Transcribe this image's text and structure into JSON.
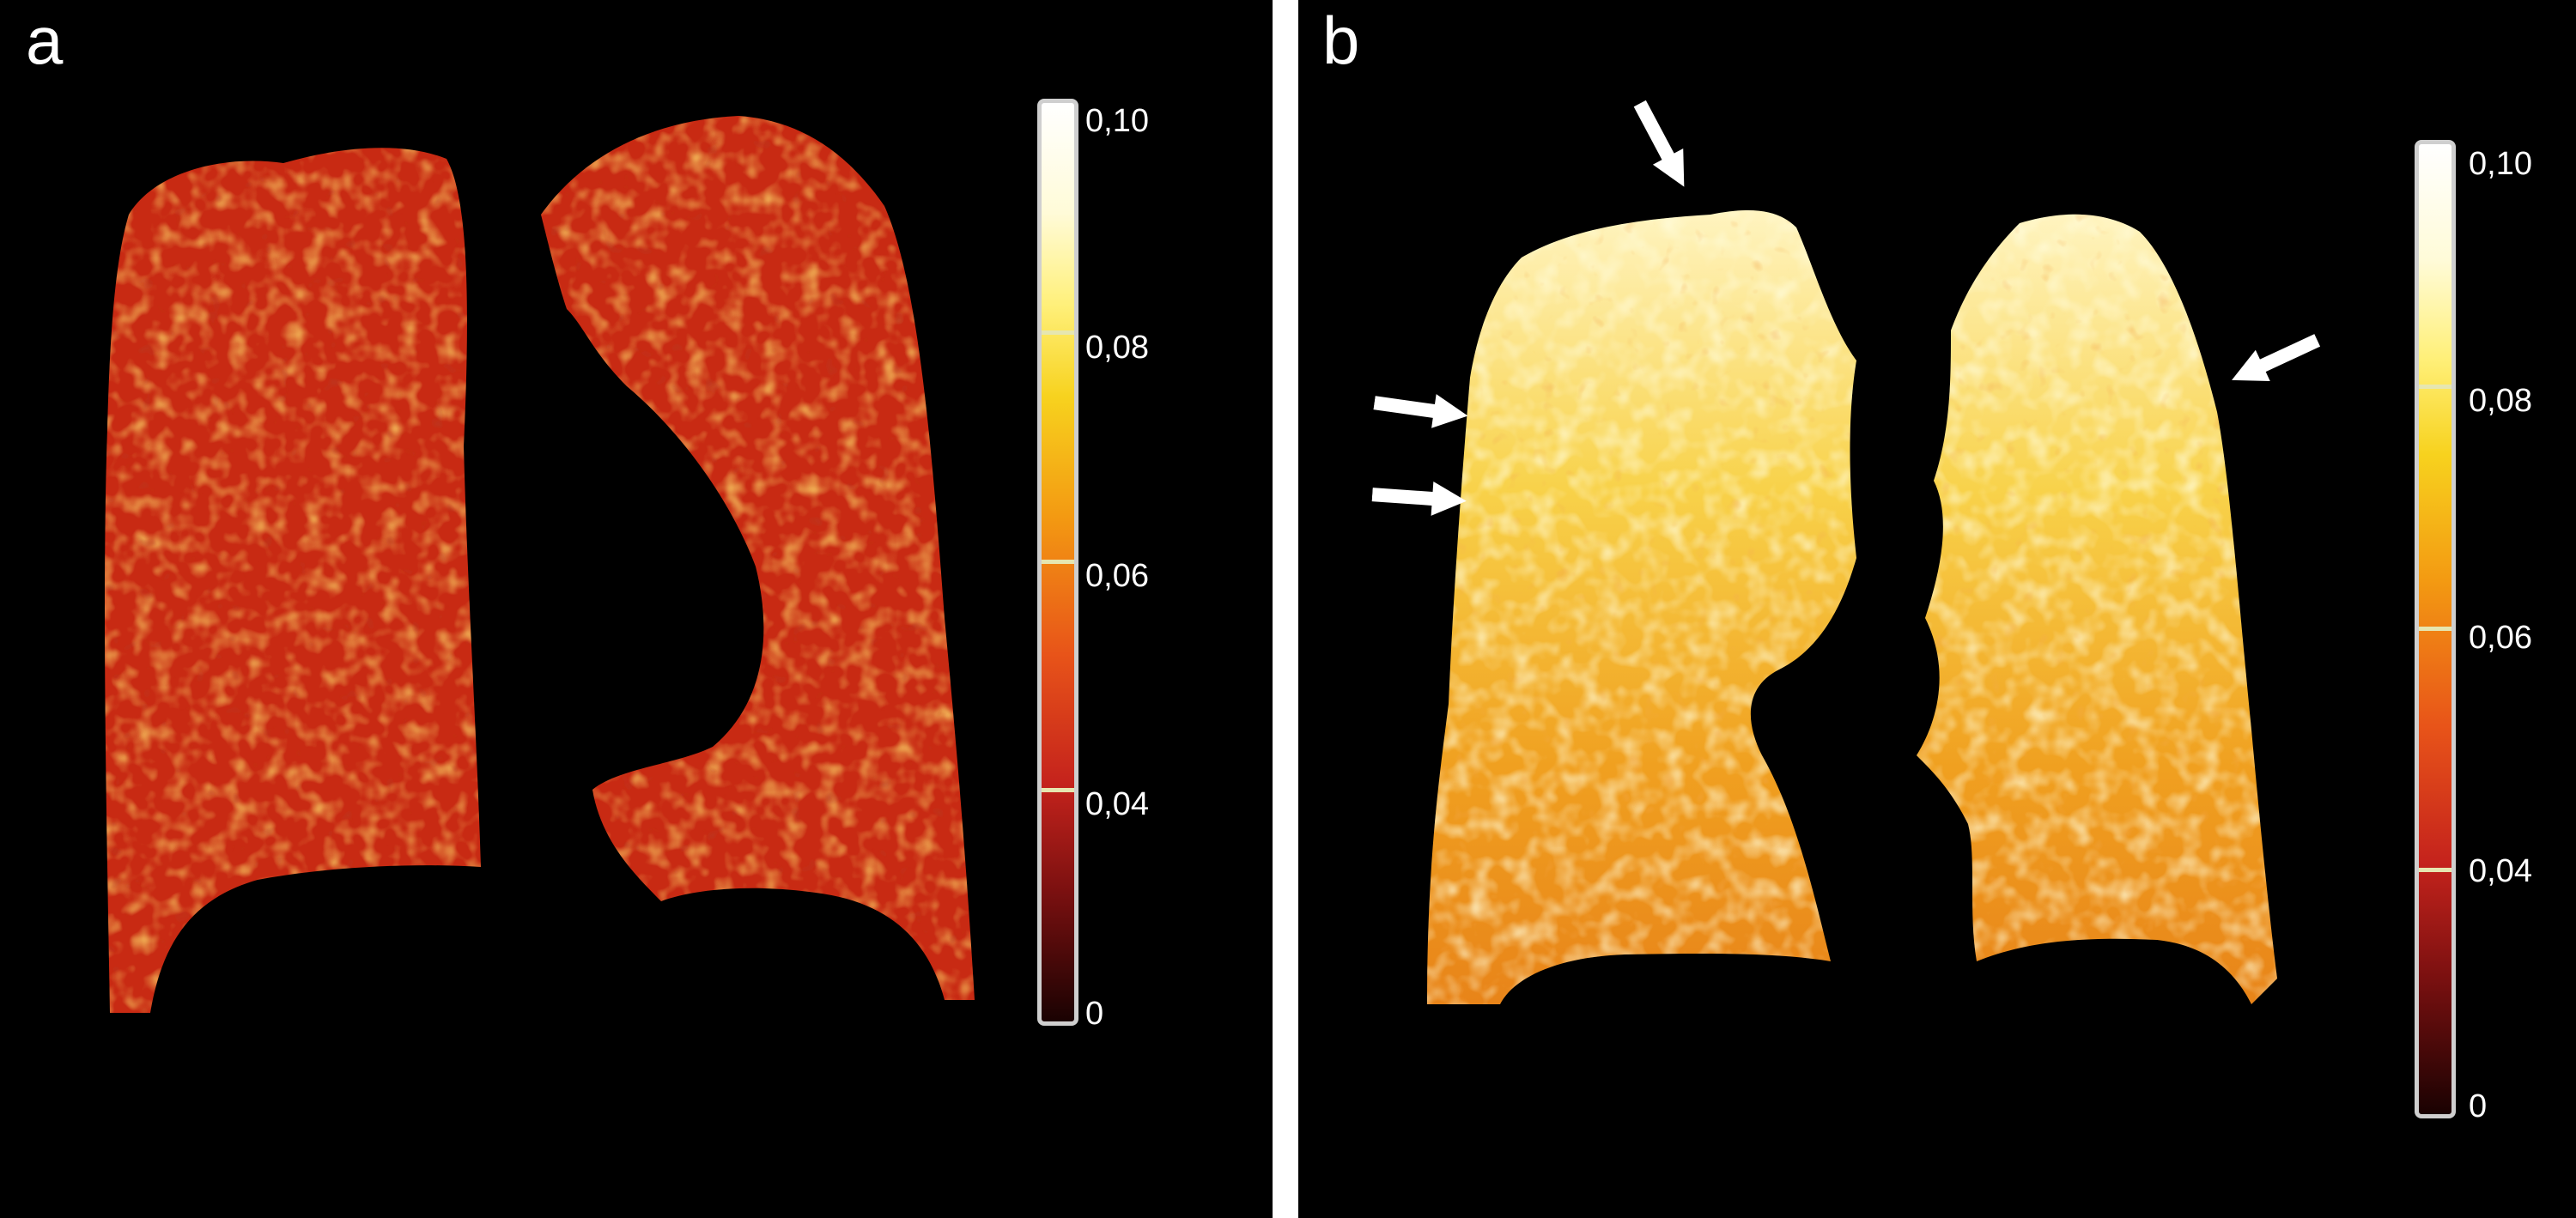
{
  "panels": [
    {
      "label": "a",
      "colorbar": {
        "ticks": [
          "0,10",
          "0,08",
          "0,06",
          "0,04",
          "0"
        ]
      }
    },
    {
      "label": "b",
      "colorbar": {
        "ticks": [
          "0,10",
          "0,08",
          "0,06",
          "0,04",
          "0"
        ]
      }
    }
  ],
  "colors": {
    "background": "#000000",
    "divider": "#ffffff",
    "map_low": "#c52a12",
    "map_mid": "#f0a020",
    "map_high": "#fff6c8",
    "arrow": "#ffffff"
  },
  "icons": [
    "arrow-icon"
  ]
}
